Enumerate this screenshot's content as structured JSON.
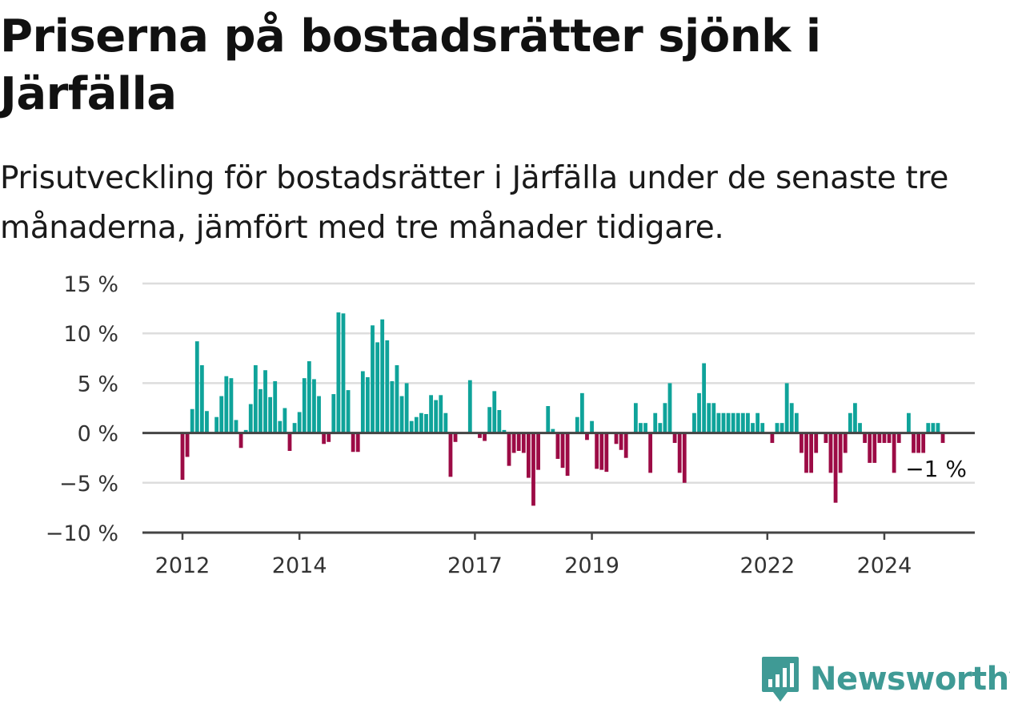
{
  "title": "Priserna på bostadsrätter sjönk i Järfälla",
  "subtitle": "Prisutveckling för bostadsrätter i Järfälla under de senaste tre månaderna, jämfört med tre månader tidigare.",
  "brand": {
    "name": "Newsworthy",
    "icon": "newsworthy-logo-icon",
    "color": "#3f9a95"
  },
  "chart_data": {
    "type": "bar",
    "ylim": [
      -10,
      15
    ],
    "yticks": [
      15,
      10,
      5,
      0,
      -5,
      -10
    ],
    "ytick_labels": [
      "15 %",
      "10 %",
      "5 %",
      "0 %",
      "−5 %",
      "−10 %"
    ],
    "xticks": [
      2012,
      2014,
      2017,
      2019,
      2022,
      2024
    ],
    "x_start": "2012-01",
    "x_end": "2024-12",
    "colors": {
      "positive": "#0fa39a",
      "negative": "#9c0b45",
      "grid": "#dddddd",
      "zero": "#444444"
    },
    "grid": true,
    "annotation": "−1 %",
    "values": [
      -4.7,
      -2.4,
      2.4,
      9.2,
      6.8,
      2.2,
      0,
      1.6,
      3.7,
      5.7,
      5.5,
      1.3,
      -1.5,
      0.3,
      2.9,
      6.8,
      4.4,
      6.3,
      3.6,
      5.2,
      1.2,
      2.5,
      -1.8,
      1.0,
      2.1,
      5.5,
      7.2,
      5.4,
      3.7,
      -1.1,
      -0.9,
      3.9,
      12.1,
      12.0,
      4.3,
      -1.9,
      -1.9,
      6.2,
      5.6,
      10.8,
      9.1,
      11.4,
      9.3,
      5.2,
      6.8,
      3.7,
      5.0,
      1.2,
      1.6,
      2.0,
      1.9,
      3.8,
      3.3,
      3.8,
      2.0,
      -4.4,
      -0.9,
      0,
      0,
      5.3,
      0,
      -0.5,
      -0.8,
      2.6,
      4.2,
      2.3,
      0.3,
      -3.3,
      -2.0,
      -1.8,
      -2.0,
      -4.5,
      -7.3,
      -3.7,
      0,
      2.7,
      0.4,
      -2.6,
      -3.5,
      -4.3,
      0,
      1.6,
      4.0,
      -0.7,
      1.2,
      -3.6,
      -3.7,
      -3.9,
      0,
      -1.1,
      -1.7,
      -2.5,
      0,
      3.0,
      1.0,
      1.0,
      -4.0,
      2.0,
      1.0,
      3.0,
      5.0,
      -1.0,
      -4.0,
      -5.0,
      0,
      2.0,
      4.0,
      7.0,
      3.0,
      3.0,
      2.0,
      2.0,
      2.0,
      2.0,
      2.0,
      2.0,
      2.0,
      1.0,
      2.0,
      1.0,
      0,
      -1.0,
      1.0,
      1.0,
      5.0,
      3.0,
      2.0,
      -2.0,
      -4.0,
      -4.0,
      -2.0,
      0,
      -1.0,
      -4.0,
      -7.0,
      -4.0,
      -2.0,
      2.0,
      3.0,
      1.0,
      -1.0,
      -3.0,
      -3.0,
      -1.0,
      -1.0,
      -1.0,
      -4.0,
      -1.0,
      0,
      2.0,
      -2.0,
      -2.0,
      -2.0,
      1.0,
      1.0,
      1.0,
      -1.0
    ]
  }
}
